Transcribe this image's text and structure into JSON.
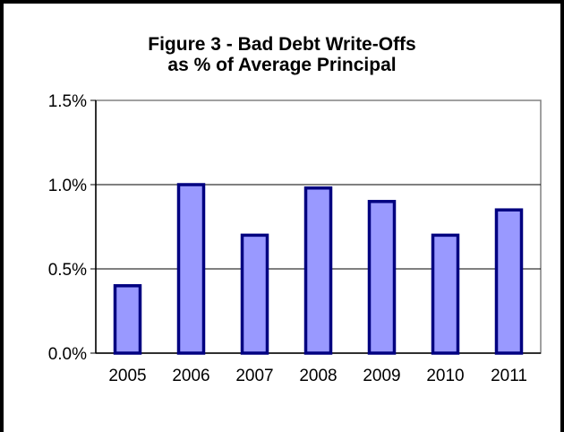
{
  "chart_data": {
    "type": "bar",
    "title": "Figure 3 - Bad Debt Write-Offs",
    "subtitle": "as % of Average Principal",
    "xlabel": "",
    "ylabel": "",
    "categories": [
      "2005",
      "2006",
      "2007",
      "2008",
      "2009",
      "2010",
      "2011"
    ],
    "values": [
      0.4,
      1.0,
      0.7,
      0.98,
      0.9,
      0.7,
      0.85
    ],
    "ylim": [
      0,
      1.5
    ],
    "yticks": [
      0,
      0.5,
      1.0,
      1.5
    ],
    "ytick_labels": [
      "0.0%",
      "0.5%",
      "1.0%",
      "1.5%"
    ],
    "grid": true,
    "legend": "none",
    "colors": {
      "bar_fill": "#9999ff",
      "bar_stroke": "#000080",
      "grid": "#000000",
      "plot_border": "#808080"
    }
  }
}
